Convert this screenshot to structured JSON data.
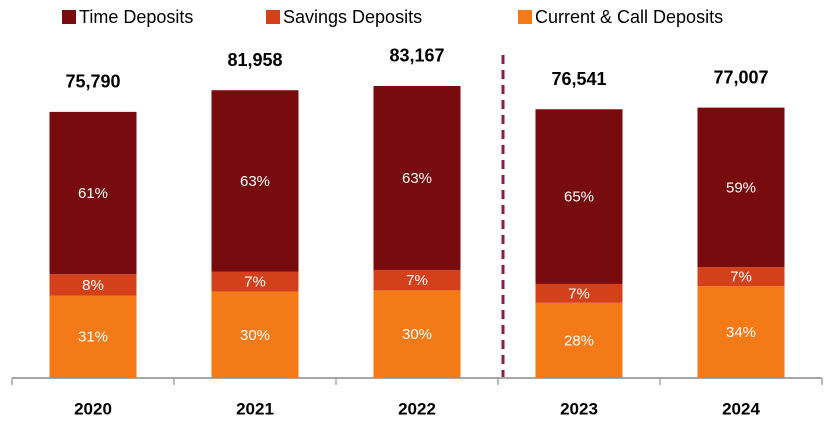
{
  "chart_data": {
    "type": "stacked_bar",
    "categories": [
      "2020",
      "2021",
      "2022",
      "2023",
      "2024"
    ],
    "series": [
      {
        "name": "Time Deposits",
        "color": "#780b0d",
        "values": [
          61,
          63,
          63,
          65,
          59
        ],
        "value_labels": [
          "61%",
          "63%",
          "63%",
          "65%",
          "59%"
        ]
      },
      {
        "name": "Savings Deposits",
        "color": "#d3401a",
        "values": [
          8,
          7,
          7,
          7,
          7
        ],
        "value_labels": [
          "8%",
          "7%",
          "7%",
          "7%",
          "7%"
        ]
      },
      {
        "name": "Current & Call Deposits",
        "color": "#f47a18",
        "values": [
          31,
          30,
          30,
          28,
          34
        ],
        "value_labels": [
          "31%",
          "30%",
          "30%",
          "28%",
          "34%"
        ]
      }
    ],
    "totals": {
      "values": [
        75790,
        81958,
        83167,
        76541,
        77007
      ],
      "value_labels": [
        "75,790",
        "81,958",
        "83,167",
        "76,541",
        "77,007"
      ]
    },
    "ylim": [
      0,
      90000
    ]
  }
}
